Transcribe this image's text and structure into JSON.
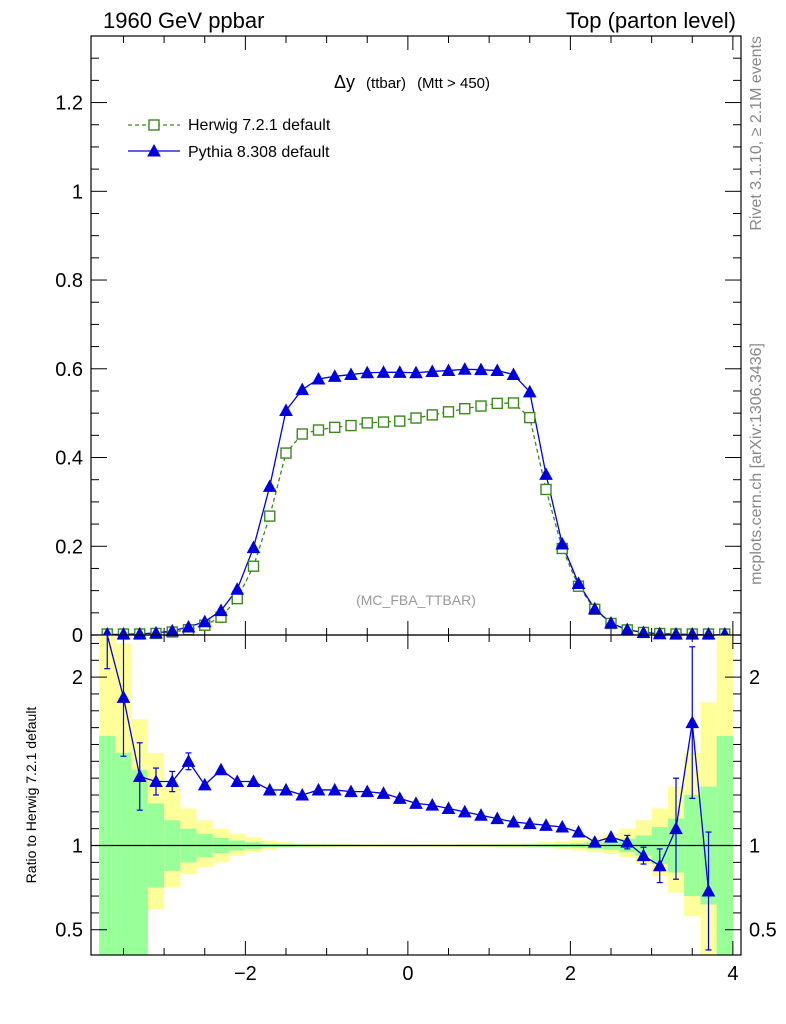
{
  "header": {
    "left": "1960 GeV ppbar",
    "right": "Top (parton level)"
  },
  "side_labels": {
    "rivet": "Rivet 3.1.10, ≥ 2.1M events",
    "mcplots": "mcplots.cern.ch [arXiv:1306.3436]"
  },
  "analysis_tag": "(MC_FBA_TTBAR)",
  "chart_data": [
    {
      "type": "line",
      "title_prefix": "Δy",
      "title_small": "(ttbar)",
      "title_suffix": "(Mtt > 450)",
      "xlim": [
        -3.9,
        4.1
      ],
      "ylim": [
        0,
        1.35
      ],
      "x_ticks": [
        -2,
        0,
        2,
        4
      ],
      "y_ticks": [
        0,
        0.2,
        0.4,
        0.6,
        0.8,
        1,
        1.2
      ],
      "y_tick_labels": [
        "0",
        "0.2",
        "0.4",
        "0.6",
        "0.8",
        "1",
        "1.2"
      ],
      "legend_position": "top-left",
      "x": [
        -3.7,
        -3.5,
        -3.3,
        -3.1,
        -2.9,
        -2.7,
        -2.5,
        -2.3,
        -2.1,
        -1.9,
        -1.7,
        -1.5,
        -1.3,
        -1.1,
        -0.9,
        -0.7,
        -0.5,
        -0.3,
        -0.1,
        0.1,
        0.3,
        0.5,
        0.7,
        0.9,
        1.1,
        1.3,
        1.5,
        1.7,
        1.9,
        2.1,
        2.3,
        2.5,
        2.7,
        2.9,
        3.1,
        3.3,
        3.5,
        3.7,
        3.9
      ],
      "series": [
        {
          "name": "Herwig 7.2.1 default",
          "color": "#3a8a1a",
          "marker": "open-square",
          "line": "dashed",
          "values": [
            0.0004,
            0.0009,
            0.0018,
            0.0035,
            0.0068,
            0.012,
            0.022,
            0.04,
            0.082,
            0.155,
            0.268,
            0.41,
            0.453,
            0.462,
            0.468,
            0.472,
            0.478,
            0.48,
            0.482,
            0.489,
            0.496,
            0.503,
            0.51,
            0.516,
            0.522,
            0.523,
            0.49,
            0.328,
            0.195,
            0.11,
            0.058,
            0.026,
            0.0115,
            0.0058,
            0.0033,
            0.0018,
            0.0009,
            0.0004,
            0.0002
          ]
        },
        {
          "name": "Pythia 8.308 default",
          "color": "#0000dd",
          "marker": "filled-triangle",
          "line": "solid",
          "values": [
            0.001,
            0.0017,
            0.0025,
            0.0046,
            0.0093,
            0.018,
            0.03,
            0.055,
            0.103,
            0.197,
            0.335,
            0.506,
            0.553,
            0.577,
            0.583,
            0.587,
            0.591,
            0.592,
            0.592,
            0.591,
            0.594,
            0.596,
            0.599,
            0.598,
            0.596,
            0.587,
            0.548,
            0.362,
            0.205,
            0.116,
            0.059,
            0.027,
            0.012,
            0.0055,
            0.0029,
            0.0019,
            0.0011,
            0.0005,
            0.0002
          ]
        }
      ]
    },
    {
      "type": "line",
      "ylabel": "Ratio to Herwig 7.2.1 default",
      "xlim": [
        -3.9,
        4.1
      ],
      "ylim": [
        0.35,
        2.25
      ],
      "x_ticks": [
        -2,
        0,
        2,
        4
      ],
      "x_tick_labels": [
        "−2",
        "0",
        "2",
        "4"
      ],
      "y_ticks": [
        0.5,
        1,
        2
      ],
      "y_tick_labels": [
        "0.5",
        "1",
        "2"
      ],
      "reference_line": 1,
      "band_colors": {
        "inner": "#99ff99",
        "outer": "#ffff99"
      },
      "bands": {
        "edges": [
          -3.8,
          -3.6,
          -3.4,
          -3.2,
          -3.0,
          -2.8,
          -2.6,
          -2.4,
          -2.2,
          -2.0,
          -1.8,
          -1.6,
          -1.4,
          -1.2,
          -1.0,
          -0.8,
          -0.6,
          -0.4,
          -0.2,
          0.0,
          0.2,
          0.4,
          0.6,
          0.8,
          1.0,
          1.2,
          1.4,
          1.6,
          1.8,
          2.0,
          2.2,
          2.4,
          2.6,
          2.8,
          3.0,
          3.2,
          3.4,
          3.6,
          3.8,
          4.0
        ],
        "inner_lo": [
          0.35,
          0.35,
          0.35,
          0.75,
          0.85,
          0.9,
          0.93,
          0.955,
          0.97,
          0.98,
          0.99,
          0.992,
          0.993,
          0.994,
          0.995,
          0.995,
          0.996,
          0.996,
          0.996,
          0.996,
          0.996,
          0.996,
          0.995,
          0.995,
          0.994,
          0.994,
          0.993,
          0.992,
          0.99,
          0.987,
          0.98,
          0.975,
          0.96,
          0.94,
          0.89,
          0.84,
          0.7,
          0.65,
          0.35
        ],
        "inner_hi": [
          1.65,
          1.55,
          1.45,
          1.25,
          1.15,
          1.1,
          1.07,
          1.045,
          1.03,
          1.02,
          1.01,
          1.008,
          1.007,
          1.006,
          1.005,
          1.005,
          1.004,
          1.004,
          1.004,
          1.004,
          1.004,
          1.004,
          1.005,
          1.005,
          1.006,
          1.006,
          1.007,
          1.008,
          1.01,
          1.013,
          1.02,
          1.025,
          1.04,
          1.06,
          1.11,
          1.16,
          1.3,
          1.35,
          1.65
        ],
        "outer_lo": [
          0.35,
          0.35,
          0.68,
          0.62,
          0.75,
          0.83,
          0.87,
          0.9,
          0.94,
          0.96,
          0.975,
          0.985,
          0.988,
          0.99,
          0.991,
          0.992,
          0.992,
          0.993,
          0.993,
          0.993,
          0.993,
          0.993,
          0.992,
          0.992,
          0.991,
          0.99,
          0.988,
          0.985,
          0.98,
          0.97,
          0.96,
          0.95,
          0.93,
          0.89,
          0.82,
          0.72,
          0.58,
          0.35,
          0.35
        ],
        "outer_hi": [
          2.25,
          2.2,
          1.75,
          1.55,
          1.35,
          1.22,
          1.15,
          1.1,
          1.07,
          1.05,
          1.03,
          1.02,
          1.015,
          1.012,
          1.01,
          1.009,
          1.008,
          1.008,
          1.007,
          1.007,
          1.007,
          1.008,
          1.008,
          1.009,
          1.01,
          1.012,
          1.015,
          1.02,
          1.025,
          1.035,
          1.05,
          1.07,
          1.1,
          1.15,
          1.22,
          1.35,
          1.55,
          1.85,
          2.25
        ]
      },
      "series": [
        {
          "name": "Pythia 8.308 default",
          "color": "#0000dd",
          "x": [
            -3.7,
            -3.5,
            -3.3,
            -3.1,
            -2.9,
            -2.7,
            -2.5,
            -2.3,
            -2.1,
            -1.9,
            -1.7,
            -1.5,
            -1.3,
            -1.1,
            -0.9,
            -0.7,
            -0.5,
            -0.3,
            -0.1,
            0.1,
            0.3,
            0.5,
            0.7,
            0.9,
            1.1,
            1.3,
            1.5,
            1.7,
            1.9,
            2.1,
            2.3,
            2.5,
            2.7,
            2.9,
            3.1,
            3.3,
            3.5,
            3.7
          ],
          "values": [
            2.45,
            1.88,
            1.41,
            1.38,
            1.38,
            1.5,
            1.36,
            1.45,
            1.38,
            1.38,
            1.33,
            1.33,
            1.3,
            1.33,
            1.33,
            1.32,
            1.32,
            1.31,
            1.28,
            1.25,
            1.24,
            1.22,
            1.2,
            1.18,
            1.16,
            1.14,
            1.13,
            1.12,
            1.11,
            1.08,
            1.02,
            1.05,
            1.02,
            0.94,
            0.88,
            1.1,
            1.73,
            0.73
          ],
          "err": [
            0.4,
            0.35,
            0.2,
            0.08,
            0.06,
            0.05,
            0.03,
            0.02,
            0.015,
            0.01,
            0.008,
            0.006,
            0.005,
            0.005,
            0.004,
            0.004,
            0.004,
            0.004,
            0.004,
            0.004,
            0.004,
            0.004,
            0.004,
            0.004,
            0.004,
            0.005,
            0.005,
            0.006,
            0.008,
            0.01,
            0.015,
            0.02,
            0.04,
            0.05,
            0.1,
            0.3,
            0.45,
            0.35
          ]
        }
      ]
    }
  ]
}
